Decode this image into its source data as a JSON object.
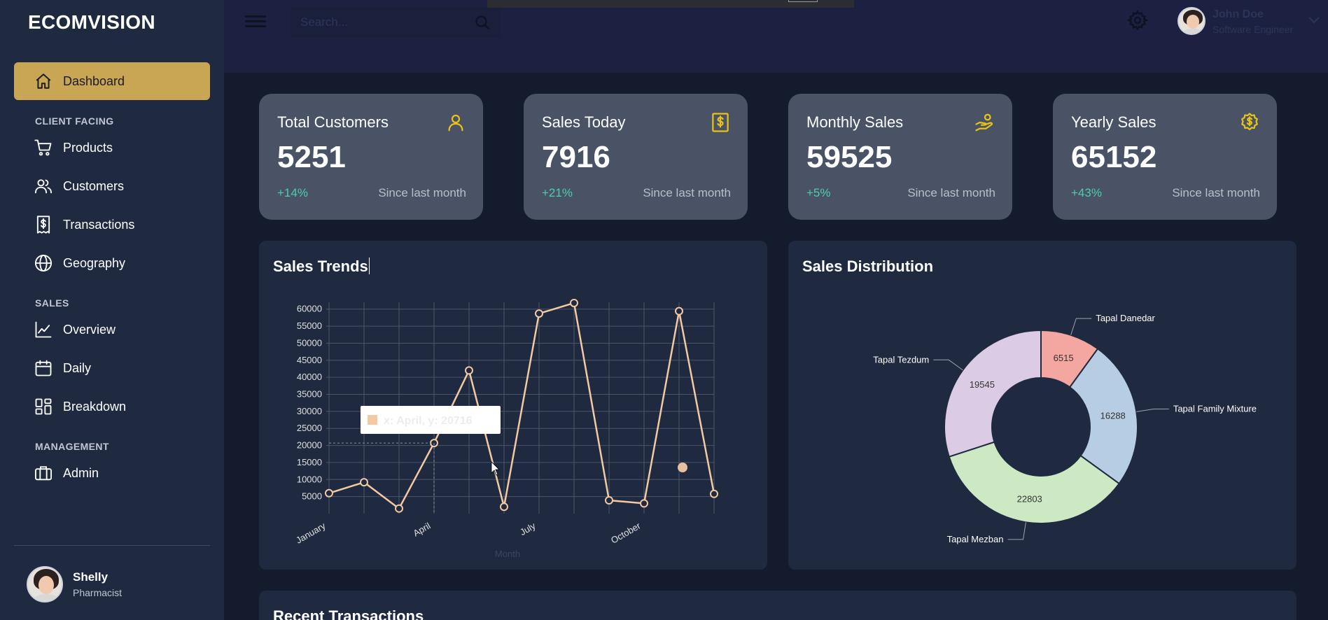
{
  "brand": "ECOMVISION",
  "sidebar": {
    "dashboard": "Dashboard",
    "sections": {
      "client": "CLIENT FACING",
      "sales": "SALES",
      "management": "MANAGEMENT"
    },
    "items": {
      "products": "Products",
      "customers": "Customers",
      "transactions": "Transactions",
      "geography": "Geography",
      "overview": "Overview",
      "daily": "Daily",
      "breakdown": "Breakdown",
      "admin": "Admin"
    },
    "profile": {
      "name": "Shelly",
      "role": "Pharmacist"
    }
  },
  "topbar": {
    "search_placeholder": "Search...",
    "user": {
      "name": "John Doe",
      "role": "Software Engineer"
    }
  },
  "stats": [
    {
      "title": "Total Customers",
      "value": "5251",
      "change": "+14%",
      "since": "Since last month",
      "icon": "user-icon"
    },
    {
      "title": "Sales Today",
      "value": "7916",
      "change": "+21%",
      "since": "Since last month",
      "icon": "receipt-dollar-icon"
    },
    {
      "title": "Monthly Sales",
      "value": "59525",
      "change": "+5%",
      "since": "Since last month",
      "icon": "hand-coins-icon"
    },
    {
      "title": "Yearly Sales",
      "value": "65152",
      "change": "+43%",
      "since": "Since last month",
      "icon": "dollar-badge-icon"
    }
  ],
  "panels": {
    "trends_title": "Sales Trends",
    "distribution_title": "Sales Distribution",
    "transactions_title": "Recent Transactions"
  },
  "colors": {
    "accent": "#c9a653",
    "positive": "#4cceac",
    "icon_gold": "#e9c217",
    "line": "#f2c9a3"
  },
  "chart_data": [
    {
      "type": "line",
      "title": "Sales Trends",
      "xlabel": "Month",
      "ylabel": "",
      "tick_labels_x": [
        "January",
        "April",
        "July",
        "October"
      ],
      "tick_labels_y": [
        "5000",
        "10000",
        "15000",
        "20000",
        "25000",
        "30000",
        "35000",
        "40000",
        "45000",
        "50000",
        "55000",
        "60000"
      ],
      "ylim": [
        0,
        62000
      ],
      "x": [
        "January",
        "February",
        "March",
        "April",
        "May",
        "June",
        "July",
        "August",
        "September",
        "October",
        "November",
        "December"
      ],
      "series": [
        {
          "values": [
            6000,
            9200,
            1500,
            20716,
            42000,
            2000,
            58700,
            61800,
            3900,
            3000,
            59400,
            5800
          ]
        }
      ],
      "tooltip": "x: April, y: 20716",
      "grid": true
    },
    {
      "type": "pie",
      "title": "Sales Distribution",
      "donut": true,
      "slices": [
        {
          "label": "Tapal Danedar",
          "value": 6515,
          "color": "#f4a6a1"
        },
        {
          "label": "Tapal Family Mixture",
          "value": 16288,
          "color": "#b7cde4"
        },
        {
          "label": "Tapal Mezban",
          "value": 22803,
          "color": "#cde9c4"
        },
        {
          "label": "Tapal Tezdum",
          "value": 19545,
          "color": "#dccbe4"
        }
      ]
    }
  ]
}
